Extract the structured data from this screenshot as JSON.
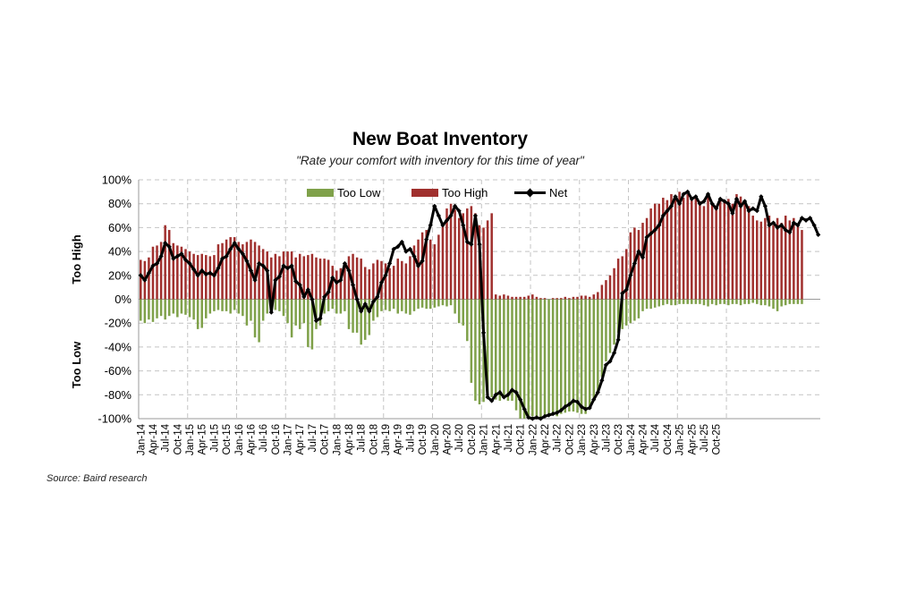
{
  "chart_data": {
    "type": "bar+line",
    "title": "New Boat Inventory",
    "subtitle": "\"Rate your comfort with inventory for this time of year\"",
    "ylabel_top": "Too High",
    "ylabel_bottom": "Too Low",
    "source": "Source: Baird research",
    "ylim": [
      -100,
      100
    ],
    "y_ticks": [
      "100%",
      "80%",
      "60%",
      "40%",
      "20%",
      "0%",
      "-20%",
      "-40%",
      "-60%",
      "-80%",
      "-100%"
    ],
    "x_tick_labels": [
      "Jan-14",
      "Apr-14",
      "Jul-14",
      "Oct-14",
      "Jan-15",
      "Apr-15",
      "Jul-15",
      "Oct-15",
      "Jan-16",
      "Apr-16",
      "Jul-16",
      "Oct-16",
      "Jan-17",
      "Apr-17",
      "Jul-17",
      "Oct-17",
      "Jan-18",
      "Apr-18",
      "Jul-18",
      "Oct-18",
      "Jan-19",
      "Apr-19",
      "Jul-19",
      "Oct-19",
      "Jan-20",
      "Apr-20",
      "Jul-20",
      "Oct-20",
      "Jan-21",
      "Apr-21",
      "Jul-21",
      "Oct-21",
      "Jan-22",
      "Apr-22",
      "Jul-22",
      "Oct-22",
      "Jan-23",
      "Apr-23",
      "Jul-23",
      "Oct-23",
      "Jan-24",
      "Apr-24",
      "Jul-24",
      "Oct-24",
      "Jan-25",
      "Apr-25",
      "Jul-25",
      "Oct-25"
    ],
    "grid": true,
    "legend_position": "top",
    "colors": {
      "too_low": "#7fa14a",
      "too_high": "#a0302e",
      "net": "#000000"
    },
    "series": [
      {
        "name": "Too Low",
        "values": [
          -18,
          -20,
          -17,
          -19,
          -16,
          -14,
          -17,
          -14,
          -12,
          -15,
          -12,
          -13,
          -15,
          -17,
          -25,
          -24,
          -16,
          -12,
          -10,
          -9,
          -10,
          -10,
          -12,
          -9,
          -12,
          -14,
          -22,
          -18,
          -32,
          -36,
          -18,
          -12,
          -10,
          -9,
          -10,
          -14,
          -20,
          -32,
          -22,
          -25,
          -20,
          -40,
          -42,
          -25,
          -22,
          -12,
          -10,
          -8,
          -12,
          -12,
          -10,
          -25,
          -28,
          -28,
          -38,
          -34,
          -30,
          -18,
          -15,
          -10,
          -9,
          -10,
          -8,
          -12,
          -10,
          -12,
          -13,
          -10,
          -8,
          -7,
          -8,
          -8,
          -7,
          -6,
          -5,
          -6,
          -5,
          -12,
          -20,
          -22,
          -35,
          -70,
          -85,
          -88,
          -86,
          -80,
          -82,
          -84,
          -85,
          -80,
          -85,
          -85,
          -93,
          -100,
          -100,
          -100,
          -98,
          -100,
          -100,
          -98,
          -97,
          -97,
          -98,
          -96,
          -95,
          -94,
          -94,
          -95,
          -96,
          -96,
          -92,
          -85,
          -78,
          -65,
          -52,
          -45,
          -38,
          -28,
          -25,
          -22,
          -20,
          -18,
          -16,
          -10,
          -8,
          -8,
          -7,
          -6,
          -5,
          -4,
          -5,
          -5,
          -4,
          -4,
          -4,
          -4,
          -4,
          -4,
          -5,
          -6,
          -4,
          -5,
          -4,
          -4,
          -5,
          -4,
          -4,
          -5,
          -4,
          -4,
          -3,
          -4,
          -5,
          -5,
          -6,
          -8,
          -10,
          -6,
          -5,
          -4,
          -4,
          -4,
          -4
        ]
      },
      {
        "name": "Too High",
        "values": [
          33,
          32,
          35,
          44,
          45,
          48,
          62,
          58,
          47,
          45,
          44,
          42,
          40,
          38,
          37,
          38,
          37,
          36,
          37,
          46,
          47,
          50,
          52,
          52,
          48,
          46,
          48,
          50,
          48,
          45,
          42,
          40,
          35,
          38,
          36,
          40,
          40,
          40,
          35,
          38,
          36,
          37,
          38,
          35,
          34,
          34,
          33,
          28,
          24,
          26,
          30,
          36,
          38,
          35,
          34,
          27,
          25,
          30,
          33,
          32,
          30,
          26,
          28,
          34,
          32,
          30,
          36,
          45,
          50,
          56,
          58,
          50,
          46,
          54,
          62,
          76,
          80,
          75,
          68,
          72,
          76,
          78,
          72,
          62,
          60,
          66,
          72,
          4,
          3,
          4,
          3,
          2,
          2,
          2,
          2,
          3,
          4,
          2,
          1,
          1,
          0,
          1,
          1,
          1,
          2,
          1,
          2,
          2,
          3,
          3,
          2,
          4,
          6,
          12,
          16,
          20,
          26,
          34,
          36,
          42,
          56,
          60,
          58,
          64,
          68,
          76,
          80,
          80,
          85,
          83,
          88,
          86,
          90,
          85,
          88,
          84,
          86,
          82,
          78,
          86,
          80,
          78,
          84,
          82,
          84,
          80,
          88,
          86,
          80,
          78,
          70,
          66,
          65,
          68,
          70,
          62,
          68,
          64,
          70,
          66,
          68,
          62,
          58
        ]
      },
      {
        "name": "Net",
        "values": [
          20,
          16,
          22,
          28,
          30,
          36,
          47,
          44,
          34,
          36,
          38,
          33,
          30,
          25,
          20,
          24,
          21,
          22,
          20,
          26,
          34,
          36,
          42,
          47,
          42,
          38,
          32,
          24,
          16,
          30,
          28,
          24,
          -11,
          16,
          19,
          28,
          26,
          28,
          15,
          12,
          2,
          8,
          0,
          -18,
          -16,
          2,
          6,
          18,
          14,
          16,
          30,
          24,
          12,
          0,
          -10,
          -4,
          -10,
          -2,
          2,
          14,
          20,
          30,
          42,
          44,
          48,
          40,
          42,
          36,
          28,
          32,
          50,
          62,
          78,
          70,
          62,
          66,
          70,
          78,
          74,
          62,
          48,
          46,
          70,
          46,
          -28,
          -82,
          -85,
          -80,
          -78,
          -82,
          -80,
          -76,
          -78,
          -84,
          -92,
          -99,
          -100,
          -99,
          -100,
          -98,
          -97,
          -96,
          -95,
          -93,
          -90,
          -88,
          -85,
          -86,
          -90,
          -92,
          -91,
          -84,
          -78,
          -68,
          -55,
          -52,
          -45,
          -34,
          5,
          8,
          20,
          30,
          40,
          35,
          52,
          55,
          58,
          62,
          70,
          74,
          78,
          86,
          80,
          88,
          90,
          84,
          86,
          80,
          82,
          88,
          80,
          76,
          84,
          82,
          80,
          72,
          84,
          78,
          82,
          74,
          76,
          74,
          86,
          78,
          62,
          64,
          60,
          62,
          58,
          56,
          64,
          62,
          68,
          66,
          68,
          62,
          54
        ]
      }
    ]
  }
}
